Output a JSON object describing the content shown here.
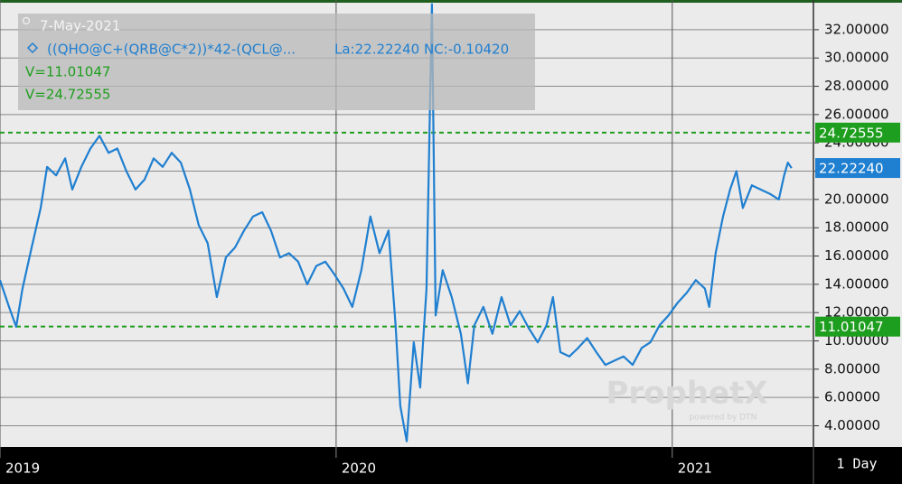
{
  "chart_data": {
    "type": "line",
    "date": "7-May-2021",
    "info": "La:22.22240 NC:-0.10420",
    "period": "1 Day",
    "watermark": "ProphetX",
    "watermark_sub": "powered by DTN",
    "last_label": "22.22240",
    "xlim": [
      2019,
      2021.42
    ],
    "xticks": [
      2019,
      2020,
      2021
    ],
    "ylim": [
      2.5,
      34.1
    ],
    "yticks": [
      {
        "value": 4,
        "label": "4.00000"
      },
      {
        "value": 6,
        "label": "6.00000"
      },
      {
        "value": 8,
        "label": "8.00000"
      },
      {
        "value": 10,
        "label": "10.00000"
      },
      {
        "value": 12,
        "label": "12.00000"
      },
      {
        "value": 14,
        "label": "14.00000"
      },
      {
        "value": 16,
        "label": "16.00000"
      },
      {
        "value": 18,
        "label": "18.00000"
      },
      {
        "value": 20,
        "label": "20.00000"
      },
      {
        "value": 22,
        "label": "22.00000"
      },
      {
        "value": 24,
        "label": "24.00000"
      },
      {
        "value": 26,
        "label": "26.00000"
      },
      {
        "value": 28,
        "label": "28.00000"
      },
      {
        "value": 30,
        "label": "30.00000"
      },
      {
        "value": 32,
        "label": "32.00000"
      }
    ],
    "grid": true,
    "reference_lines": [
      {
        "value": 11.01047,
        "legend_text": "V=11.01047",
        "color": "#1e9e1e"
      },
      {
        "value": 24.72555,
        "legend_text": "V=24.72555",
        "color": "#1e9e1e"
      }
    ],
    "series": [
      {
        "name": "((QHO@C+(QRB@C*2))*42-(QCL@...",
        "color": "#1f7fd0",
        "x": [
          2019.0,
          2019.027,
          2019.048,
          2019.067,
          2019.094,
          2019.121,
          2019.14,
          2019.167,
          2019.194,
          2019.215,
          2019.242,
          2019.269,
          2019.296,
          2019.323,
          2019.349,
          2019.376,
          2019.403,
          2019.43,
          2019.457,
          2019.484,
          2019.511,
          2019.538,
          2019.565,
          2019.591,
          2019.618,
          2019.645,
          2019.672,
          2019.699,
          2019.726,
          2019.753,
          2019.78,
          2019.806,
          2019.833,
          2019.86,
          2019.887,
          2019.914,
          2019.941,
          2019.968,
          2019.995,
          2020.022,
          2020.048,
          2020.075,
          2020.102,
          2020.129,
          2020.156,
          2020.177,
          2020.191,
          2020.21,
          2020.231,
          2020.25,
          2020.269,
          2020.285,
          2020.296,
          2020.317,
          2020.344,
          2020.371,
          2020.392,
          2020.411,
          2020.438,
          2020.465,
          2020.492,
          2020.519,
          2020.546,
          2020.573,
          2020.6,
          2020.626,
          2020.645,
          2020.667,
          2020.694,
          2020.72,
          2020.747,
          2020.774,
          2020.801,
          2020.828,
          2020.855,
          2020.882,
          2020.909,
          2020.935,
          2020.962,
          2020.989,
          2021.016,
          2021.043,
          2021.07,
          2021.097,
          2021.11,
          2021.129,
          2021.151,
          2021.172,
          2021.191,
          2021.21,
          2021.237,
          2021.263,
          2021.29,
          2021.317,
          2021.333,
          2021.344,
          2021.355
        ],
        "values": [
          14.3,
          12.4,
          11.0,
          13.7,
          16.6,
          19.4,
          22.3,
          21.7,
          22.9,
          20.7,
          22.3,
          23.6,
          24.5,
          23.3,
          23.6,
          22.0,
          20.7,
          21.4,
          22.9,
          22.3,
          23.3,
          22.6,
          20.7,
          18.2,
          16.9,
          13.1,
          15.9,
          16.6,
          17.8,
          18.8,
          19.1,
          17.8,
          15.9,
          16.2,
          15.6,
          14.0,
          15.3,
          15.6,
          14.7,
          13.7,
          12.4,
          15.0,
          18.8,
          16.2,
          17.8,
          11.1,
          5.4,
          2.9,
          9.9,
          6.7,
          13.7,
          33.8,
          11.8,
          15.0,
          13.1,
          10.5,
          7.0,
          11.1,
          12.4,
          10.5,
          13.1,
          11.1,
          12.1,
          10.9,
          9.9,
          11.1,
          13.1,
          9.2,
          8.9,
          9.5,
          10.2,
          9.2,
          8.3,
          8.6,
          8.9,
          8.3,
          9.5,
          9.9,
          11.1,
          11.8,
          12.7,
          13.4,
          14.3,
          13.7,
          12.4,
          16.2,
          18.8,
          20.7,
          22.0,
          19.4,
          21.0,
          20.7,
          20.4,
          20.0,
          21.7,
          22.6,
          22.2224
        ]
      }
    ]
  }
}
